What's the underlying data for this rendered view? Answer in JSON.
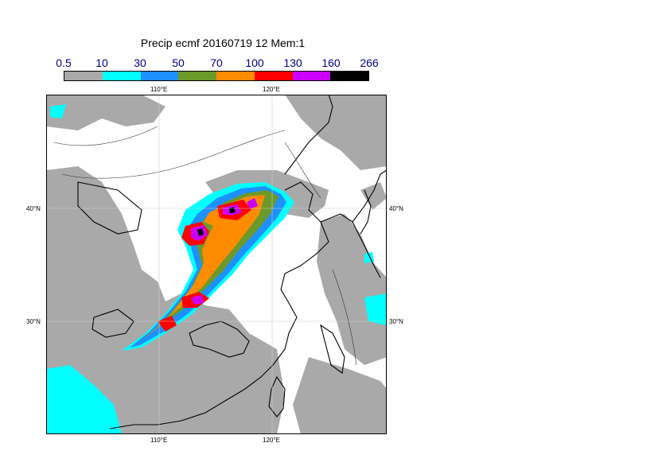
{
  "title": "Precip ecmf 20160719 12 Mem:1",
  "legend": {
    "labels": [
      "0.5",
      "10",
      "30",
      "50",
      "70",
      "100",
      "130",
      "160",
      "266"
    ],
    "colors": [
      "#a9a9a9",
      "#00ffff",
      "#1e90ff",
      "#6b9a2a",
      "#ff8c00",
      "#ff0000",
      "#cc00ff",
      "#000000"
    ]
  },
  "axes": {
    "top_ticks": [
      "110°E",
      "120°E"
    ],
    "bottom_ticks": [
      "110°E",
      "120°E"
    ],
    "left_ticks": [
      "40°N",
      "30°N"
    ],
    "right_ticks": [
      "40°N",
      "30°N"
    ]
  },
  "map": {
    "water_color": "#ffffff",
    "coast_color": "#000000",
    "dry_color": "#ffffff"
  }
}
